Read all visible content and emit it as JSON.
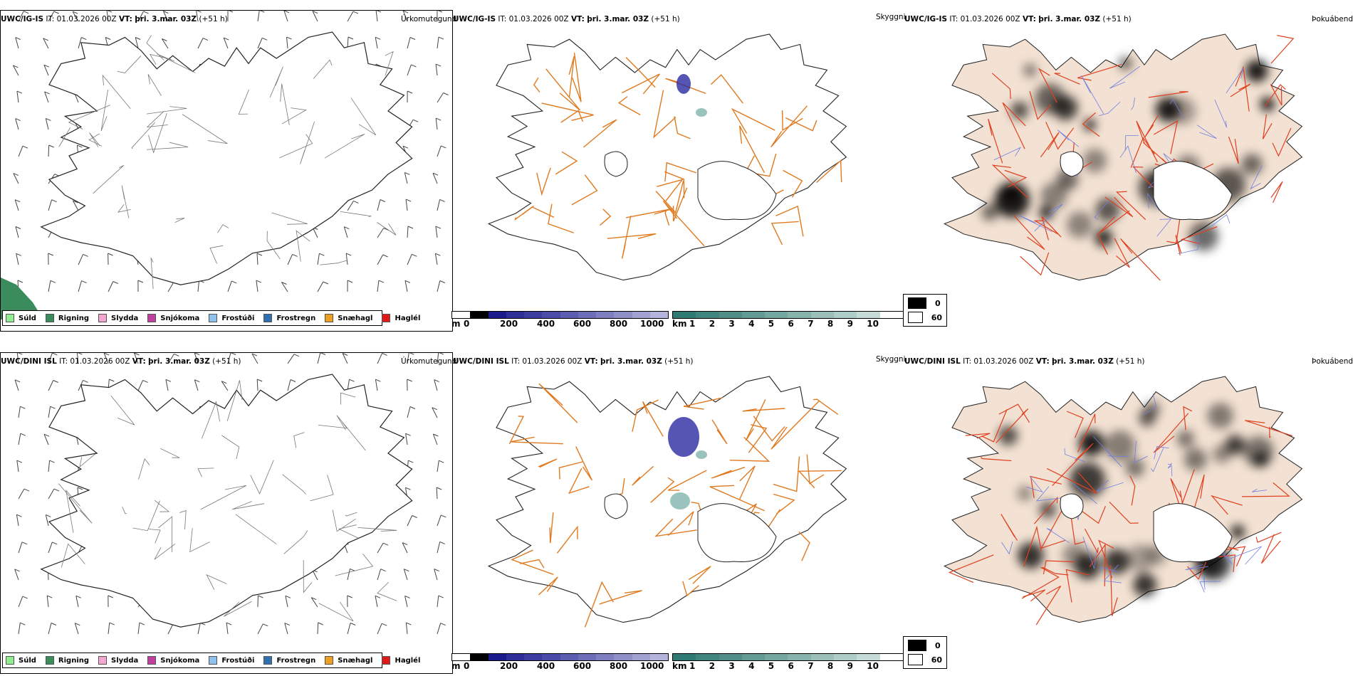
{
  "rows": [
    {
      "model": "UWC/IG-IS",
      "it_label": "IT:",
      "it_value": "01.03.2026 00Z",
      "vt_label": "VT:",
      "vt_value": "þri. 3.mar. 03Z",
      "lead": "(+51 h)"
    },
    {
      "model": "UWC/DINI ISL",
      "it_label": "IT:",
      "it_value": "01.03.2026 00Z",
      "vt_label": "VT:",
      "vt_value": "þri. 3.mar. 03Z",
      "lead": "(+51 h)"
    }
  ],
  "panel_titles": {
    "precip_type": "Úrkomutegund",
    "ceiling": "Skyggni",
    "fog": "Þokuábendi"
  },
  "precip_legend": [
    {
      "label": "Súld",
      "color": "#90ee90"
    },
    {
      "label": "Rigning",
      "color": "#3a8c5c"
    },
    {
      "label": "Slydda",
      "color": "#f4a6d0"
    },
    {
      "label": "Snjókoma",
      "color": "#c040a0"
    },
    {
      "label": "Frostúði",
      "color": "#90c0ec"
    },
    {
      "label": "Frostregn",
      "color": "#2f6eb0"
    },
    {
      "label": "Snæhagl",
      "color": "#f0a020"
    },
    {
      "label": "Haglél",
      "color": "#e01818"
    }
  ],
  "height_colorbar": {
    "unit": "m",
    "ticks": [
      "0",
      "200",
      "400",
      "600",
      "800",
      "1000"
    ],
    "colors": [
      "#ffffff",
      "#000000",
      "#1a1a8c",
      "#2e2e96",
      "#3c3ca0",
      "#4c4ca8",
      "#5c5cb0",
      "#6e6eb8",
      "#7e7ec0",
      "#9090c8",
      "#a2a2d2",
      "#b4b4dc"
    ]
  },
  "vis_colorbar": {
    "unit": "km",
    "ticks": [
      "1",
      "2",
      "3",
      "4",
      "5",
      "6",
      "7",
      "8",
      "9",
      "10"
    ],
    "colors": [
      "#2f7a72",
      "#3f857d",
      "#508f88",
      "#629b94",
      "#74a7a0",
      "#87b3ad",
      "#9bc0ba",
      "#afcdc8",
      "#c5dbd7",
      "#ffffff"
    ]
  },
  "fog_legend": [
    {
      "label": "0",
      "color": "#000000"
    },
    {
      "label": "60",
      "color": "#ffffff"
    }
  ]
}
